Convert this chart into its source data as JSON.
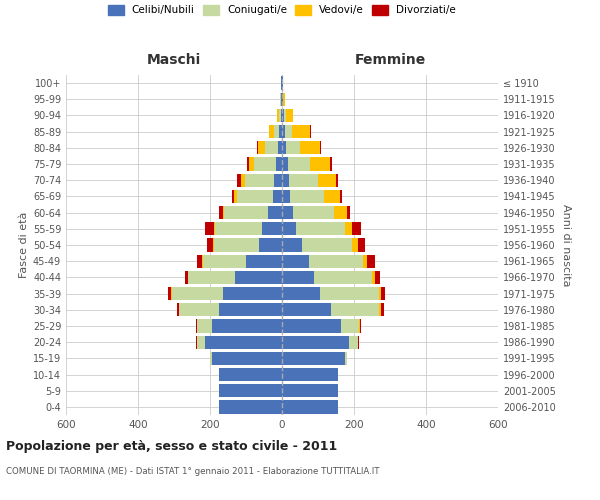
{
  "age_groups": [
    "0-4",
    "5-9",
    "10-14",
    "15-19",
    "20-24",
    "25-29",
    "30-34",
    "35-39",
    "40-44",
    "45-49",
    "50-54",
    "55-59",
    "60-64",
    "65-69",
    "70-74",
    "75-79",
    "80-84",
    "85-89",
    "90-94",
    "95-99",
    "100+"
  ],
  "birth_years": [
    "2006-2010",
    "2001-2005",
    "1996-2000",
    "1991-1995",
    "1986-1990",
    "1981-1985",
    "1976-1980",
    "1971-1975",
    "1966-1970",
    "1961-1965",
    "1956-1960",
    "1951-1955",
    "1946-1950",
    "1941-1945",
    "1936-1940",
    "1931-1935",
    "1926-1930",
    "1921-1925",
    "1916-1920",
    "1911-1915",
    "≤ 1910"
  ],
  "male_celibi": [
    175,
    175,
    175,
    195,
    215,
    195,
    175,
    165,
    130,
    100,
    65,
    55,
    40,
    25,
    22,
    18,
    12,
    7,
    4,
    3,
    2
  ],
  "male_coniugati": [
    0,
    0,
    0,
    5,
    20,
    40,
    110,
    140,
    130,
    120,
    125,
    130,
    120,
    100,
    80,
    60,
    35,
    15,
    5,
    2,
    1
  ],
  "male_vedovi": [
    0,
    0,
    0,
    0,
    1,
    1,
    2,
    2,
    2,
    2,
    2,
    3,
    5,
    8,
    12,
    15,
    20,
    15,
    5,
    1,
    0
  ],
  "male_divorziati": [
    0,
    0,
    0,
    0,
    3,
    3,
    5,
    10,
    8,
    15,
    15,
    25,
    10,
    5,
    10,
    5,
    2,
    0,
    0,
    0,
    0
  ],
  "female_celibi": [
    155,
    155,
    155,
    175,
    185,
    165,
    135,
    105,
    90,
    75,
    55,
    40,
    30,
    22,
    20,
    18,
    10,
    8,
    5,
    2,
    2
  ],
  "female_coniugati": [
    0,
    0,
    0,
    5,
    25,
    50,
    135,
    165,
    160,
    150,
    140,
    135,
    115,
    95,
    80,
    60,
    40,
    20,
    5,
    2,
    0
  ],
  "female_vedovi": [
    0,
    0,
    0,
    0,
    2,
    2,
    5,
    5,
    8,
    12,
    15,
    20,
    35,
    45,
    50,
    55,
    55,
    50,
    20,
    5,
    1
  ],
  "female_divorziati": [
    0,
    0,
    0,
    0,
    3,
    3,
    8,
    12,
    15,
    20,
    20,
    25,
    10,
    5,
    5,
    5,
    2,
    2,
    0,
    0,
    0
  ],
  "colors": {
    "celibi": "#4a72b8",
    "coniugati": "#c5d9a0",
    "vedovi": "#ffc000",
    "divorziati": "#c00000"
  },
  "title": "Popolazione per età, sesso e stato civile - 2011",
  "subtitle": "COMUNE DI TAORMINA (ME) - Dati ISTAT 1° gennaio 2011 - Elaborazione TUTTITALIA.IT",
  "xlabel_left": "Maschi",
  "xlabel_right": "Femmine",
  "ylabel_left": "Fasce di età",
  "ylabel_right": "Anni di nascita",
  "xlim": 600,
  "bg_color": "#ffffff"
}
